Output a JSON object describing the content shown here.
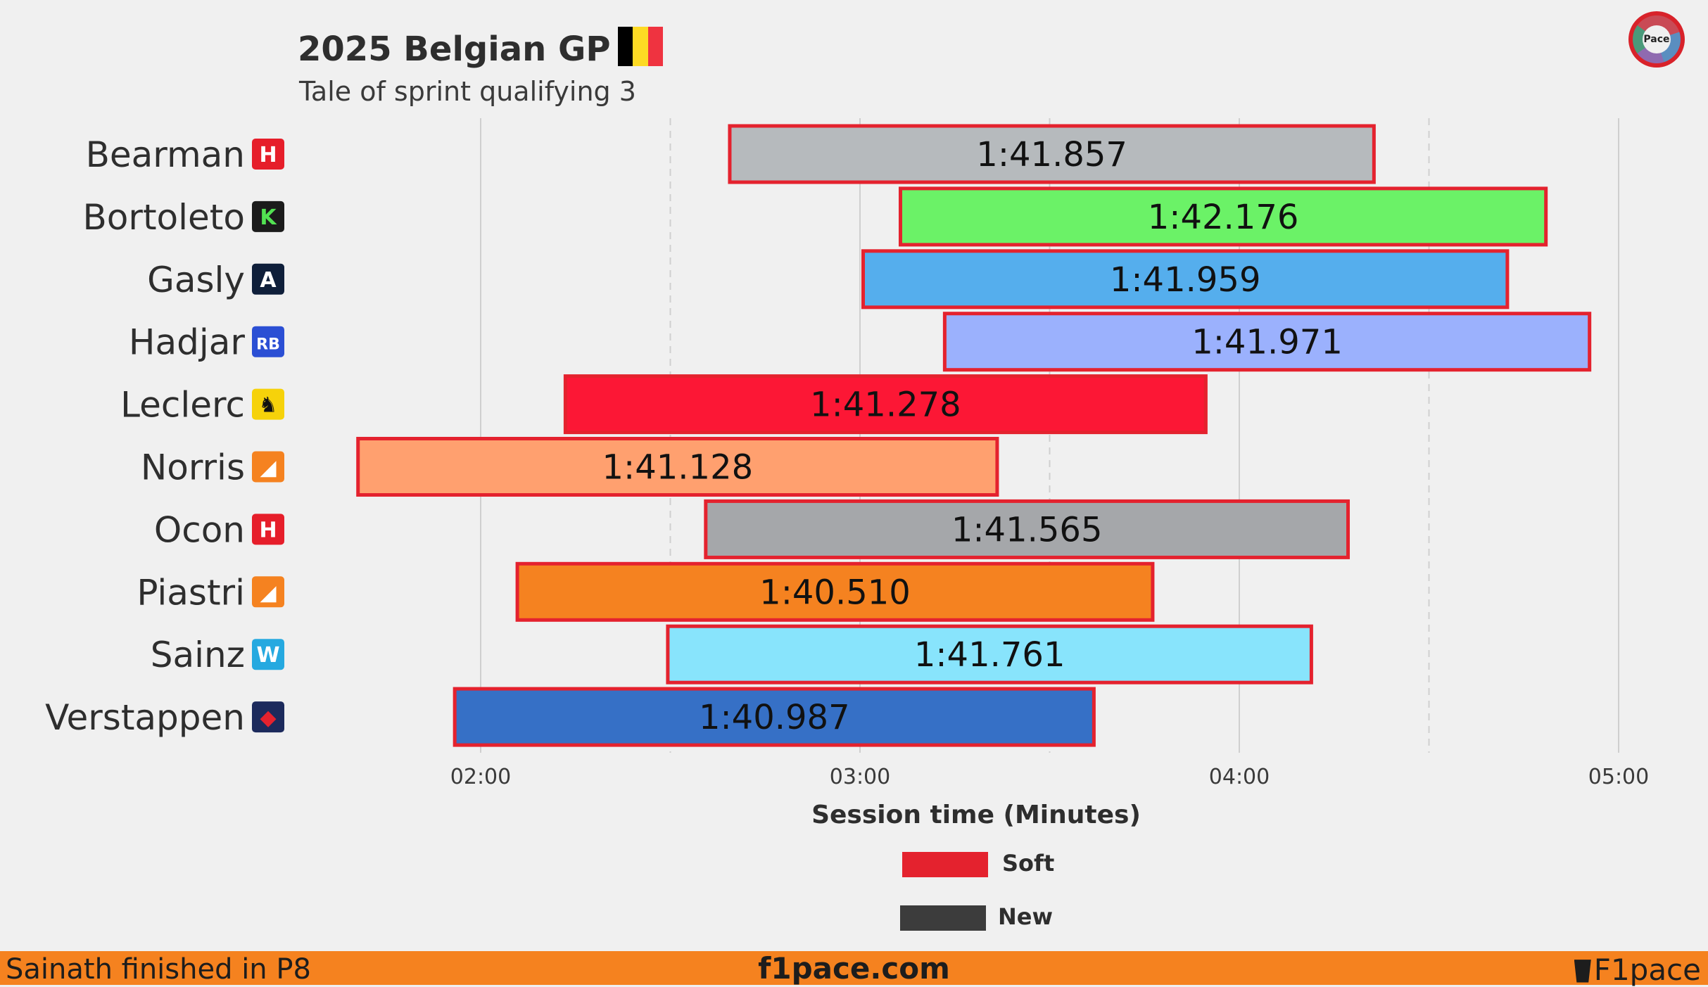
{
  "header": {
    "title": "2025 Belgian GP",
    "subtitle": "Tale of sprint qualifying 3",
    "flag_colors": [
      "#000000",
      "#fdda24",
      "#ef3340"
    ]
  },
  "logo": {
    "text": "Pace"
  },
  "chart_data": {
    "type": "bar",
    "orientation": "horizontal-range",
    "xlabel": "Session time (Minutes)",
    "x_ticks": [
      {
        "value": 120,
        "label": "02:00",
        "major": true
      },
      {
        "value": 150,
        "label": "",
        "major": false
      },
      {
        "value": 180,
        "label": "03:00",
        "major": true
      },
      {
        "value": 210,
        "label": "",
        "major": false
      },
      {
        "value": 240,
        "label": "04:00",
        "major": true
      },
      {
        "value": 270,
        "label": "",
        "major": false
      },
      {
        "value": 300,
        "label": "05:00",
        "major": true
      }
    ],
    "xlim": [
      101,
      306
    ],
    "grid": true,
    "series": [
      {
        "driver": "Bearman",
        "team_icon": "haas-icon",
        "start": 159.4,
        "end": 261.3,
        "lap_time": "1:41.857",
        "color": "#b6babd"
      },
      {
        "driver": "Bortoleto",
        "team_icon": "sauber-icon",
        "start": 186.4,
        "end": 288.5,
        "lap_time": "1:42.176",
        "color": "#6bf267"
      },
      {
        "driver": "Gasly",
        "team_icon": "alpine-icon",
        "start": 180.5,
        "end": 282.4,
        "lap_time": "1:41.959",
        "color": "#55aeed"
      },
      {
        "driver": "Hadjar",
        "team_icon": "racing-bulls-icon",
        "start": 193.4,
        "end": 295.4,
        "lap_time": "1:41.971",
        "color": "#9bb1fd"
      },
      {
        "driver": "Leclerc",
        "team_icon": "ferrari-icon",
        "start": 133.4,
        "end": 234.7,
        "lap_time": "1:41.278",
        "color": "#fc1735"
      },
      {
        "driver": "Norris",
        "team_icon": "mclaren-icon",
        "start": 100.6,
        "end": 201.7,
        "lap_time": "1:41.128",
        "color": "#ffa06f"
      },
      {
        "driver": "Ocon",
        "team_icon": "haas-icon",
        "start": 155.6,
        "end": 257.2,
        "lap_time": "1:41.565",
        "color": "#a5a7aa"
      },
      {
        "driver": "Piastri",
        "team_icon": "mclaren-icon",
        "start": 125.8,
        "end": 226.3,
        "lap_time": "1:40.510",
        "color": "#f58220"
      },
      {
        "driver": "Sainz",
        "team_icon": "williams-icon",
        "start": 149.6,
        "end": 251.4,
        "lap_time": "1:41.761",
        "color": "#88e4fc"
      },
      {
        "driver": "Verstappen",
        "team_icon": "red-bull-icon",
        "start": 115.9,
        "end": 217.0,
        "lap_time": "1:40.987",
        "color": "#3670c6"
      }
    ],
    "compound_color": "#e4222e",
    "legend": [
      {
        "label": "Soft",
        "color": "#e4222e"
      },
      {
        "label": "New",
        "color": "#3c3c3c"
      }
    ]
  },
  "footer": {
    "left": "Sainath finished in P8",
    "center": "f1pace.com",
    "right": "F1pace",
    "background": "#f5821f"
  }
}
